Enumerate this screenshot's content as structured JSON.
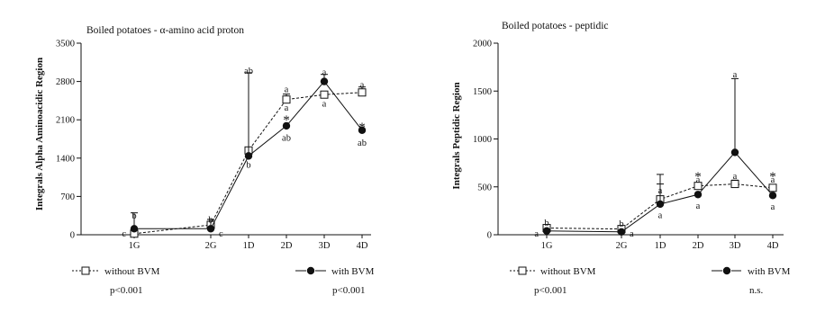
{
  "chart_data": [
    {
      "type": "line",
      "title": "Boiled potatoes - α-amino acid proton",
      "ylabel": "Integrals Alpha Aminoacidic Region",
      "xlabel": "",
      "categories": [
        "1G",
        "2G",
        "1D",
        "2D",
        "3D",
        "4D"
      ],
      "ylim": [
        0,
        3500
      ],
      "yticks": [
        "0",
        "700",
        "1400",
        "2100",
        "2800",
        "3500"
      ],
      "grid": false,
      "series": [
        {
          "name": "without BVM",
          "marker": "open-square",
          "line": "dashed",
          "values": [
            20,
            180,
            1540,
            2470,
            2560,
            2600
          ],
          "err_up": [
            0,
            100,
            0,
            100,
            0,
            100
          ]
        },
        {
          "name": "with BVM",
          "marker": "filled-circle",
          "line": "solid",
          "values": [
            110,
            110,
            1440,
            1990,
            2800,
            1910
          ],
          "err_up": [
            290,
            170,
            1520,
            0,
            130,
            0
          ]
        }
      ],
      "annotations": [
        [
          "1G",
          360,
          "b"
        ],
        [
          "2G",
          290,
          "b"
        ],
        [
          "1D",
          3010,
          "ab"
        ],
        [
          "2D",
          2670,
          "a"
        ],
        [
          "3D",
          2980,
          "a"
        ],
        [
          "4D",
          2750,
          "a"
        ],
        [
          "1G",
          -80,
          "c"
        ],
        [
          "2G",
          -80,
          "c"
        ],
        [
          "1D",
          1290,
          "b"
        ],
        [
          "2D",
          2330,
          "a"
        ],
        [
          "3D",
          2410,
          "a"
        ],
        [
          "2D",
          1780,
          "ab"
        ],
        [
          "4D",
          1690,
          "ab"
        ]
      ],
      "stars": [
        [
          "2D",
          2150
        ],
        [
          "4D",
          2020
        ]
      ],
      "legend": {
        "position": "bottom",
        "items": [
          {
            "label": "without BVM",
            "p": "p<0.001"
          },
          {
            "label": "with BVM",
            "p": "p<0.001"
          }
        ]
      }
    },
    {
      "type": "line",
      "title": "Boiled potatoes - peptidic",
      "ylabel": "Integrals Peptidic Region",
      "xlabel": "",
      "categories": [
        "1G",
        "2G",
        "1D",
        "2D",
        "3D",
        "4D"
      ],
      "ylim": [
        0,
        2000
      ],
      "yticks": [
        "0",
        "500",
        "1000",
        "1500",
        "2000"
      ],
      "grid": false,
      "series": [
        {
          "name": "without BVM",
          "marker": "open-square",
          "line": "dashed",
          "values": [
            70,
            60,
            370,
            510,
            530,
            490
          ],
          "err_up": [
            0,
            0,
            260,
            0,
            40,
            0
          ]
        },
        {
          "name": "with BVM",
          "marker": "filled-circle",
          "line": "solid",
          "values": [
            40,
            30,
            320,
            420,
            860,
            410
          ],
          "err_up": [
            0,
            0,
            210,
            0,
            770,
            0
          ]
        }
      ],
      "annotations": [
        [
          "1G",
          130,
          "b"
        ],
        [
          "2G",
          120,
          "b"
        ],
        [
          "1G",
          -20,
          "a"
        ],
        [
          "2G",
          -20,
          "a"
        ],
        [
          "1D",
          470,
          "a"
        ],
        [
          "1D",
          210,
          "a"
        ],
        [
          "2D",
          580,
          "a"
        ],
        [
          "2D",
          310,
          "a"
        ],
        [
          "3D",
          1680,
          "a"
        ],
        [
          "3D",
          620,
          "a"
        ],
        [
          "4D",
          580,
          "a"
        ],
        [
          "4D",
          300,
          "a"
        ]
      ],
      "stars": [
        [
          "2D",
          640
        ],
        [
          "4D",
          640
        ]
      ],
      "legend": {
        "position": "bottom",
        "items": [
          {
            "label": "without BVM",
            "p": "p<0.001"
          },
          {
            "label": "with BVM",
            "p": "n.s."
          }
        ]
      }
    }
  ]
}
